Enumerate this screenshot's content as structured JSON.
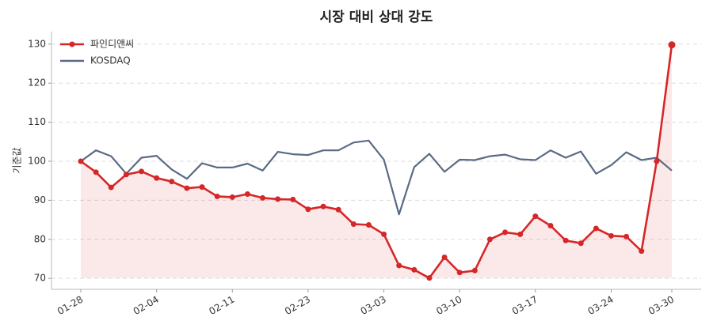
{
  "chart_data": {
    "type": "line",
    "title": "시장 대비 상대 강도",
    "y_label": "기준값",
    "categories": [
      "01-28",
      null,
      null,
      null,
      null,
      "02-04",
      null,
      null,
      null,
      null,
      "02-11",
      null,
      null,
      null,
      null,
      "02-23",
      null,
      null,
      null,
      null,
      "03-03",
      null,
      null,
      null,
      null,
      "03-10",
      null,
      null,
      null,
      null,
      "03-17",
      null,
      null,
      null,
      null,
      "03-24",
      null,
      null,
      null,
      "03-30"
    ],
    "series": [
      {
        "name": "파인디앤씨",
        "color": "#d62728",
        "markers": true,
        "fill": true,
        "values": [
          100,
          97.2,
          93.3,
          96.6,
          97.4,
          95.7,
          94.8,
          93.1,
          93.4,
          91.0,
          90.8,
          91.6,
          90.6,
          90.3,
          90.2,
          87.7,
          88.4,
          87.6,
          83.9,
          83.7,
          81.3,
          73.3,
          72.2,
          70.1,
          75.4,
          71.5,
          72.0,
          80.0,
          81.8,
          81.3,
          85.9,
          83.5,
          79.7,
          79.0,
          82.8,
          80.9,
          80.7,
          77.0,
          100.0,
          129.8
        ]
      },
      {
        "name": "KOSDAQ",
        "color": "#5a6a85",
        "markers": false,
        "fill": false,
        "values": [
          100,
          102.8,
          101.3,
          96.8,
          100.9,
          101.4,
          97.9,
          95.5,
          99.5,
          98.4,
          98.4,
          99.4,
          97.6,
          102.4,
          101.8,
          101.6,
          102.8,
          102.8,
          104.8,
          105.3,
          100.4,
          86.4,
          98.5,
          101.9,
          97.3,
          100.4,
          100.3,
          101.3,
          101.7,
          100.5,
          100.3,
          102.8,
          100.9,
          102.5,
          96.8,
          99.0,
          102.3,
          100.3,
          100.9,
          97.6
        ]
      }
    ],
    "ylim": [
      67.2,
      133.2
    ],
    "yticks": [
      70,
      80,
      90,
      100,
      110,
      120,
      130
    ],
    "grid": true,
    "legend": "upper left"
  }
}
